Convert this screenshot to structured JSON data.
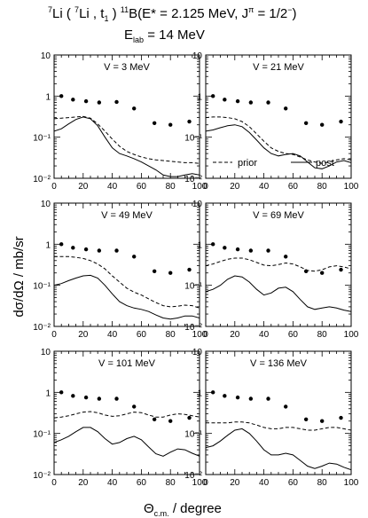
{
  "header": {
    "reaction": {
      "a_mass": "7",
      "a_el": "Li",
      "b_mass": "7",
      "b_el": "Li",
      "ejectile": "t",
      "ejectile_sub": "1",
      "res_mass": "11",
      "res_el": "B",
      "excitation": "E* = 2.125 MeV, J",
      "pi": "π",
      "jpi_val": " = 1/2",
      "jpi_sign": "−",
      "close": ")"
    },
    "elab": {
      "symbol": "E",
      "sub": "lab",
      "value": " = 14 MeV"
    }
  },
  "ylabel": "dσ/dΩ  /  mb/sr",
  "xlabel": "Θ",
  "xlabel_sub": "c.m.",
  "xlabel_rest": " / degree",
  "chart_data": [
    {
      "type": "scatter",
      "title": "V = 3 MeV",
      "xlim": [
        0,
        100
      ],
      "ylim": [
        0.01,
        10
      ],
      "yscale": "log",
      "xticks": [
        0,
        20,
        40,
        60,
        80,
        100
      ],
      "yticks": [
        "10⁻²",
        "10⁻¹",
        "1",
        "10"
      ],
      "x": [
        5,
        13,
        22,
        31,
        43,
        55,
        69,
        80,
        93
      ],
      "y": [
        1.0,
        0.82,
        0.75,
        0.7,
        0.72,
        0.5,
        0.22,
        0.2,
        0.24
      ],
      "series": [
        {
          "name": "prior",
          "style": "dashed",
          "x": [
            0,
            5,
            10,
            15,
            20,
            25,
            30,
            35,
            40,
            45,
            50,
            55,
            60,
            65,
            70,
            75,
            80,
            85,
            90,
            95,
            100
          ],
          "y": [
            0.28,
            0.29,
            0.3,
            0.31,
            0.32,
            0.29,
            0.21,
            0.14,
            0.09,
            0.06,
            0.045,
            0.038,
            0.033,
            0.03,
            0.028,
            0.027,
            0.026,
            0.025,
            0.024,
            0.024,
            0.023
          ]
        },
        {
          "name": "post",
          "style": "solid",
          "x": [
            0,
            5,
            10,
            15,
            20,
            25,
            30,
            35,
            40,
            45,
            50,
            55,
            60,
            65,
            70,
            75,
            80,
            85,
            90,
            95,
            100
          ],
          "y": [
            0.14,
            0.16,
            0.21,
            0.27,
            0.31,
            0.28,
            0.19,
            0.1,
            0.055,
            0.04,
            0.035,
            0.03,
            0.025,
            0.02,
            0.016,
            0.012,
            0.011,
            0.011,
            0.012,
            0.013,
            0.012
          ]
        }
      ]
    },
    {
      "type": "scatter",
      "title": "V = 21 MeV",
      "xlim": [
        0,
        100
      ],
      "ylim": [
        0.01,
        10
      ],
      "yscale": "log",
      "xticks": [
        0,
        20,
        40,
        60,
        80,
        100
      ],
      "yticks": [
        "10⁻²",
        "10⁻¹",
        "1",
        "10"
      ],
      "x": [
        5,
        13,
        22,
        31,
        43,
        55,
        69,
        80,
        93
      ],
      "y": [
        1.0,
        0.82,
        0.75,
        0.7,
        0.7,
        0.5,
        0.22,
        0.2,
        0.24
      ],
      "legend": {
        "prior_label": "prior",
        "post_label": "post",
        "position": "bottom"
      },
      "series": [
        {
          "name": "prior",
          "style": "dashed",
          "x": [
            0,
            5,
            10,
            15,
            20,
            25,
            30,
            35,
            40,
            45,
            50,
            55,
            60,
            65,
            70,
            75,
            80,
            85,
            90,
            95,
            100
          ],
          "y": [
            0.3,
            0.31,
            0.31,
            0.3,
            0.28,
            0.24,
            0.18,
            0.12,
            0.08,
            0.055,
            0.045,
            0.04,
            0.038,
            0.033,
            0.028,
            0.025,
            0.023,
            0.025,
            0.028,
            0.03,
            0.028
          ]
        },
        {
          "name": "post",
          "style": "solid",
          "x": [
            0,
            5,
            10,
            15,
            20,
            25,
            30,
            35,
            40,
            45,
            50,
            55,
            60,
            65,
            70,
            75,
            80,
            85,
            90,
            95,
            100
          ],
          "y": [
            0.14,
            0.15,
            0.17,
            0.19,
            0.2,
            0.18,
            0.13,
            0.085,
            0.055,
            0.04,
            0.035,
            0.038,
            0.04,
            0.035,
            0.025,
            0.018,
            0.017,
            0.02,
            0.025,
            0.027,
            0.024
          ]
        }
      ]
    },
    {
      "type": "scatter",
      "title": "V = 49 MeV",
      "xlim": [
        0,
        100
      ],
      "ylim": [
        0.01,
        10
      ],
      "yscale": "log",
      "xticks": [
        0,
        20,
        40,
        60,
        80,
        100
      ],
      "yticks": [
        "10⁻²",
        "10⁻¹",
        "1",
        "10"
      ],
      "x": [
        5,
        13,
        22,
        31,
        43,
        55,
        69,
        80,
        93
      ],
      "y": [
        1.0,
        0.82,
        0.75,
        0.7,
        0.7,
        0.5,
        0.22,
        0.2,
        0.24
      ],
      "series": [
        {
          "name": "prior",
          "style": "dashed",
          "x": [
            0,
            5,
            10,
            15,
            20,
            25,
            30,
            35,
            40,
            45,
            50,
            55,
            60,
            65,
            70,
            75,
            80,
            85,
            90,
            95,
            100
          ],
          "y": [
            0.5,
            0.5,
            0.5,
            0.48,
            0.45,
            0.4,
            0.33,
            0.25,
            0.17,
            0.12,
            0.085,
            0.068,
            0.058,
            0.047,
            0.038,
            0.032,
            0.03,
            0.031,
            0.033,
            0.032,
            0.028
          ]
        },
        {
          "name": "post",
          "style": "solid",
          "x": [
            0,
            5,
            10,
            15,
            20,
            25,
            30,
            35,
            40,
            45,
            50,
            55,
            60,
            65,
            70,
            75,
            80,
            85,
            90,
            95,
            100
          ],
          "y": [
            0.1,
            0.11,
            0.13,
            0.15,
            0.17,
            0.175,
            0.15,
            0.1,
            0.062,
            0.04,
            0.032,
            0.028,
            0.026,
            0.023,
            0.019,
            0.016,
            0.015,
            0.016,
            0.018,
            0.018,
            0.016
          ]
        }
      ]
    },
    {
      "type": "scatter",
      "title": "V = 69 MeV",
      "xlim": [
        0,
        100
      ],
      "ylim": [
        0.01,
        10
      ],
      "yscale": "log",
      "xticks": [
        0,
        20,
        40,
        60,
        80,
        100
      ],
      "yticks": [
        "10⁻²",
        "10⁻¹",
        "1",
        "10"
      ],
      "x": [
        5,
        13,
        22,
        31,
        43,
        55,
        69,
        80,
        93
      ],
      "y": [
        1.0,
        0.82,
        0.75,
        0.7,
        0.7,
        0.5,
        0.22,
        0.2,
        0.24
      ],
      "series": [
        {
          "name": "prior",
          "style": "dashed",
          "x": [
            0,
            5,
            10,
            15,
            20,
            25,
            30,
            35,
            40,
            45,
            50,
            55,
            60,
            65,
            70,
            75,
            80,
            85,
            90,
            95,
            100
          ],
          "y": [
            0.3,
            0.33,
            0.38,
            0.43,
            0.46,
            0.46,
            0.42,
            0.36,
            0.31,
            0.3,
            0.32,
            0.35,
            0.33,
            0.28,
            0.23,
            0.22,
            0.24,
            0.28,
            0.3,
            0.28,
            0.25
          ]
        },
        {
          "name": "post",
          "style": "solid",
          "x": [
            0,
            5,
            10,
            15,
            20,
            25,
            30,
            35,
            40,
            45,
            50,
            55,
            60,
            65,
            70,
            75,
            80,
            85,
            90,
            95,
            100
          ],
          "y": [
            0.07,
            0.08,
            0.1,
            0.14,
            0.17,
            0.16,
            0.12,
            0.08,
            0.058,
            0.065,
            0.085,
            0.09,
            0.07,
            0.045,
            0.03,
            0.026,
            0.028,
            0.03,
            0.028,
            0.025,
            0.023
          ]
        }
      ]
    },
    {
      "type": "scatter",
      "title": "V = 101 MeV",
      "xlim": [
        0,
        100
      ],
      "ylim": [
        0.01,
        10
      ],
      "yscale": "log",
      "xticks": [
        0,
        20,
        40,
        60,
        80,
        100
      ],
      "yticks": [
        "10⁻²",
        "10⁻¹",
        "1",
        "10"
      ],
      "x": [
        5,
        13,
        22,
        31,
        43,
        55,
        69,
        80,
        93
      ],
      "y": [
        1.0,
        0.82,
        0.75,
        0.7,
        0.7,
        0.45,
        0.22,
        0.2,
        0.24
      ],
      "series": [
        {
          "name": "prior",
          "style": "dashed",
          "x": [
            0,
            5,
            10,
            15,
            20,
            25,
            30,
            35,
            40,
            45,
            50,
            55,
            60,
            65,
            70,
            75,
            80,
            85,
            90,
            95,
            100
          ],
          "y": [
            0.24,
            0.25,
            0.27,
            0.3,
            0.33,
            0.34,
            0.32,
            0.28,
            0.26,
            0.27,
            0.3,
            0.33,
            0.32,
            0.28,
            0.25,
            0.25,
            0.28,
            0.3,
            0.29,
            0.27,
            0.25
          ]
        },
        {
          "name": "post",
          "style": "solid",
          "x": [
            0,
            5,
            10,
            15,
            20,
            25,
            30,
            35,
            40,
            45,
            50,
            55,
            60,
            65,
            70,
            75,
            80,
            85,
            90,
            95,
            100
          ],
          "y": [
            0.06,
            0.07,
            0.085,
            0.11,
            0.14,
            0.14,
            0.11,
            0.075,
            0.055,
            0.06,
            0.075,
            0.085,
            0.07,
            0.047,
            0.032,
            0.028,
            0.035,
            0.042,
            0.04,
            0.033,
            0.028
          ]
        }
      ]
    },
    {
      "type": "scatter",
      "title": "V = 136 MeV",
      "xlim": [
        0,
        100
      ],
      "ylim": [
        0.01,
        10
      ],
      "yscale": "log",
      "xticks": [
        0,
        20,
        40,
        60,
        80,
        100
      ],
      "yticks": [
        "10⁻²",
        "10⁻¹",
        "1",
        "10"
      ],
      "x": [
        5,
        13,
        22,
        31,
        43,
        55,
        69,
        80,
        93
      ],
      "y": [
        1.0,
        0.82,
        0.75,
        0.7,
        0.7,
        0.45,
        0.22,
        0.2,
        0.24
      ],
      "series": [
        {
          "name": "prior",
          "style": "dashed",
          "x": [
            0,
            5,
            10,
            15,
            20,
            25,
            30,
            35,
            40,
            45,
            50,
            55,
            60,
            65,
            70,
            75,
            80,
            85,
            90,
            95,
            100
          ],
          "y": [
            0.18,
            0.18,
            0.18,
            0.18,
            0.19,
            0.19,
            0.18,
            0.16,
            0.14,
            0.13,
            0.13,
            0.14,
            0.14,
            0.13,
            0.12,
            0.12,
            0.13,
            0.14,
            0.14,
            0.13,
            0.12
          ]
        },
        {
          "name": "post",
          "style": "solid",
          "x": [
            0,
            5,
            10,
            15,
            20,
            25,
            30,
            35,
            40,
            45,
            50,
            55,
            60,
            65,
            70,
            75,
            80,
            85,
            90,
            95,
            100
          ],
          "y": [
            0.045,
            0.05,
            0.065,
            0.09,
            0.12,
            0.13,
            0.1,
            0.065,
            0.04,
            0.03,
            0.03,
            0.033,
            0.03,
            0.022,
            0.016,
            0.014,
            0.016,
            0.019,
            0.018,
            0.015,
            0.013
          ]
        }
      ]
    }
  ]
}
